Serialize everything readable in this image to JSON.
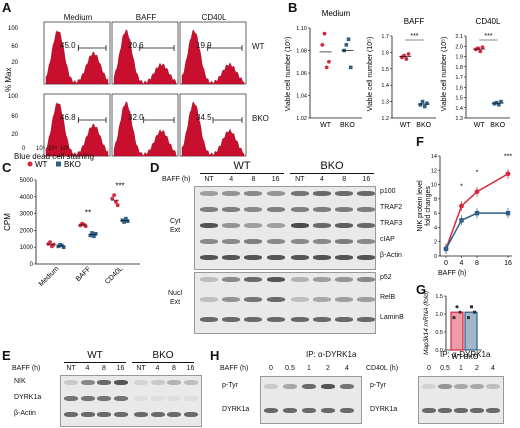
{
  "panels": {
    "A": "A",
    "B": "B",
    "C": "C",
    "D": "D",
    "E": "E",
    "F": "F",
    "G": "G",
    "H": "H"
  },
  "panel_a": {
    "columns": [
      "Medium",
      "BAFF",
      "CD40L"
    ],
    "rows": [
      "WT",
      "BKO"
    ],
    "values": [
      [
        "45.0",
        "20.6",
        "19.9"
      ],
      [
        "46.8",
        "32.0",
        "34.5"
      ]
    ],
    "ylabel": "% Max",
    "xticks": [
      "0",
      "10³",
      "10⁴",
      "10⁵"
    ],
    "xlabel": "Blue dead cell staining",
    "color": "#c8102e"
  },
  "panel_b": {
    "ylabel": "Viable cell number (10⁵)",
    "charts": [
      {
        "title": "Medium",
        "ticks": [
          "1.10",
          "1.08",
          "1.06",
          "1.04",
          "1.02"
        ],
        "groups": [
          "WT",
          "BKO"
        ],
        "sig": ""
      },
      {
        "title": "BAFF",
        "ticks": [
          "1.7",
          "1.6",
          "1.5",
          "1.4",
          "1.3",
          "1.2"
        ],
        "groups": [
          "WT",
          "BKO"
        ],
        "sig": "***"
      },
      {
        "title": "CD40L",
        "ticks": [
          "2.1",
          "2.0",
          "1.9",
          "1.8",
          "1.7",
          "1.6",
          "1.5",
          "1.4",
          "1.3"
        ],
        "groups": [
          "WT",
          "BKO"
        ],
        "sig": "***"
      }
    ]
  },
  "panel_c": {
    "legend": [
      "WT",
      "BKO"
    ],
    "ylabel": "CPM",
    "yticks": [
      "5000",
      "4000",
      "3000",
      "2000",
      "1000",
      "0"
    ],
    "categories": [
      "Medium",
      "BAFF",
      "CD40L"
    ],
    "sig": [
      "**",
      "***"
    ]
  },
  "panel_d": {
    "genotypes": [
      "WT",
      "BKO"
    ],
    "time_label": "BAFF (h)",
    "times": [
      "NT",
      "4",
      "8",
      "16",
      "NT",
      "4",
      "8",
      "16"
    ],
    "cyt_label": [
      "Cyt",
      "Ext"
    ],
    "nucl_label": [
      "Nucl",
      "Ext"
    ],
    "cyt_proteins": [
      "p100",
      "TRAF2",
      "TRAF3",
      "cIAP",
      "β-Actin"
    ],
    "nucl_proteins": [
      "p52",
      "RelB",
      "LaminB"
    ]
  },
  "panel_e": {
    "genotypes": [
      "WT",
      "BKO"
    ],
    "time_label": "BAFF (h)",
    "times": [
      "NT",
      "4",
      "8",
      "16",
      "NT",
      "4",
      "8",
      "16"
    ],
    "proteins": [
      "NIK",
      "DYRK1a",
      "β-Actin"
    ]
  },
  "panel_f": {
    "ylabel": [
      "NIK protein level",
      "fold changes"
    ],
    "xlabel": "BAFF (h)",
    "sig": [
      "*",
      "*",
      "***"
    ]
  },
  "panel_g": {
    "ylabel": "Map3k14 mRNA (fold)",
    "groups": [
      "WT",
      "BKO"
    ]
  },
  "panel_h": {
    "left": {
      "ip": "IP: α-DYRK1a",
      "stim": "BAFF (h)",
      "times": [
        "0",
        "0.5",
        "1",
        "2",
        "4"
      ],
      "proteins": [
        "p-Tyr",
        "DYRK1a"
      ]
    },
    "right": {
      "ip": "IP: α-DYRK1a",
      "stim": "CD40L (h)",
      "times": [
        "0",
        "0.5",
        "1",
        "2",
        "4"
      ],
      "proteins": [
        "p-Tyr",
        "DYRK1a"
      ]
    }
  },
  "chart_data": [
    {
      "type": "scatter",
      "title": "Medium",
      "ylabel": "Viable cell number (10⁵)",
      "categories": [
        "WT",
        "BKO"
      ],
      "series": [
        {
          "name": "WT",
          "values": [
            1.085,
            1.095,
            1.065,
            1.07
          ]
        },
        {
          "name": "BKO",
          "values": [
            1.08,
            1.085,
            1.09,
            1.065
          ]
        }
      ],
      "ylim": [
        1.02,
        1.1
      ]
    },
    {
      "type": "scatter",
      "title": "BAFF",
      "ylabel": "Viable cell number (10⁵)",
      "categories": [
        "WT",
        "BKO"
      ],
      "series": [
        {
          "name": "WT",
          "values": [
            1.57,
            1.58,
            1.56,
            1.59
          ]
        },
        {
          "name": "BKO",
          "values": [
            1.28,
            1.3,
            1.27,
            1.29
          ]
        }
      ],
      "ylim": [
        1.2,
        1.7
      ]
    },
    {
      "type": "scatter",
      "title": "CD40L",
      "ylabel": "Viable cell number (10⁵)",
      "categories": [
        "WT",
        "BKO"
      ],
      "series": [
        {
          "name": "WT",
          "values": [
            1.97,
            1.98,
            1.95,
            1.99
          ]
        },
        {
          "name": "BKO",
          "values": [
            1.44,
            1.45,
            1.43,
            1.46
          ]
        }
      ],
      "ylim": [
        1.3,
        2.1
      ]
    },
    {
      "type": "scatter",
      "ylabel": "CPM",
      "categories": [
        "Medium",
        "BAFF",
        "CD40L"
      ],
      "series": [
        {
          "name": "WT",
          "values": [
            [
              1200,
              1300,
              1050,
              1150
            ],
            [
              2300,
              2400,
              2350,
              2250
            ],
            [
              3900,
              4100,
              3700,
              3500
            ]
          ]
        },
        {
          "name": "BKO",
          "values": [
            [
              1050,
              1150,
              1100,
              1000
            ],
            [
              1700,
              1850,
              1650,
              1800
            ],
            [
              2600,
              2500,
              2700,
              2550
            ]
          ]
        }
      ],
      "ylim": [
        0,
        5000
      ]
    },
    {
      "type": "line",
      "xlabel": "BAFF (h)",
      "x": [
        0,
        4,
        8,
        16
      ],
      "series": [
        {
          "name": "WT",
          "values": [
            1,
            7,
            9,
            11.5
          ]
        },
        {
          "name": "BKO",
          "values": [
            1,
            5,
            6,
            6
          ]
        }
      ],
      "ylim": [
        0,
        14
      ]
    },
    {
      "type": "bar",
      "ylabel": "Map3k14 mRNA (fold)",
      "categories": [
        "WT",
        "BKO"
      ],
      "values": [
        1.05,
        1.05
      ],
      "ylim": [
        0,
        1.5
      ]
    }
  ]
}
